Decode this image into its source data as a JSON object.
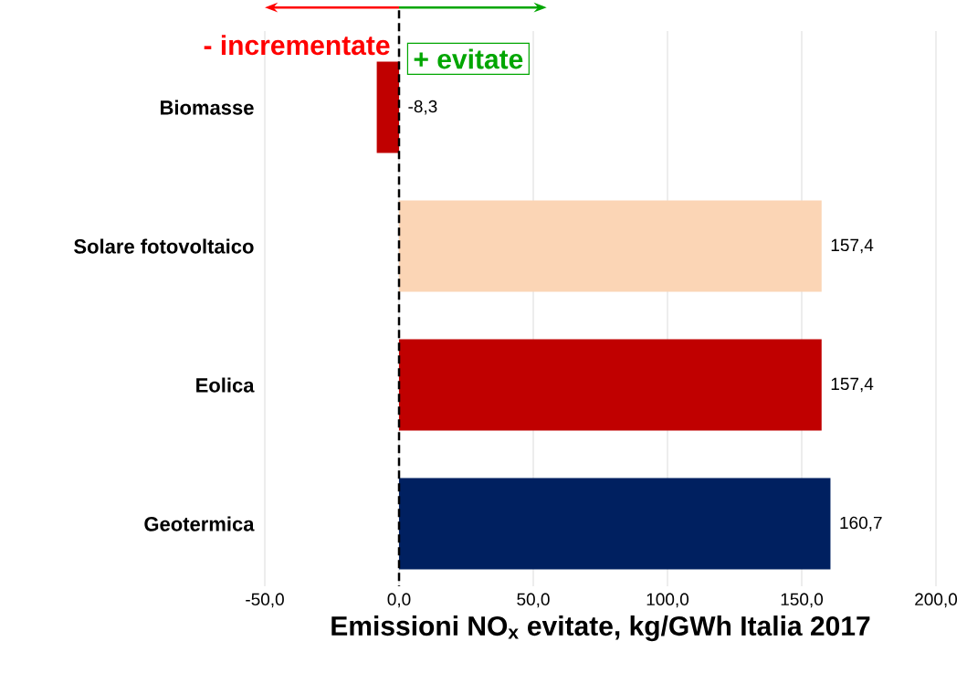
{
  "chart_data": {
    "type": "bar",
    "orientation": "horizontal",
    "categories": [
      "Biomasse",
      "Solare fotovoltaico",
      "Eolica",
      "Geotermica"
    ],
    "values": [
      -8.3,
      157.4,
      157.4,
      160.7
    ],
    "colors": [
      "#c00000",
      "#fbd5b5",
      "#c00000",
      "#002060"
    ],
    "value_labels": [
      "-8,3",
      "157,4",
      "157,4",
      "160,7"
    ],
    "xlim": [
      -50,
      200
    ],
    "xticks": [
      {
        "value": -50,
        "label": "-50,0"
      },
      {
        "value": 0,
        "label": "0,0"
      },
      {
        "value": 50,
        "label": "50,0"
      },
      {
        "value": 100,
        "label": "100,0"
      },
      {
        "value": 150,
        "label": "150,0"
      },
      {
        "value": 200,
        "label": "200,0"
      }
    ],
    "xlabel": "Emissioni NO$_{x}$ evitate, kg/GWh Italia 2017",
    "grid": "x",
    "ref_lines": [
      {
        "axis": "x",
        "value": 0,
        "color": "#000000",
        "line_style": "dashed"
      }
    ],
    "annotations": [
      "- incrementate",
      "+ evitate"
    ]
  }
}
